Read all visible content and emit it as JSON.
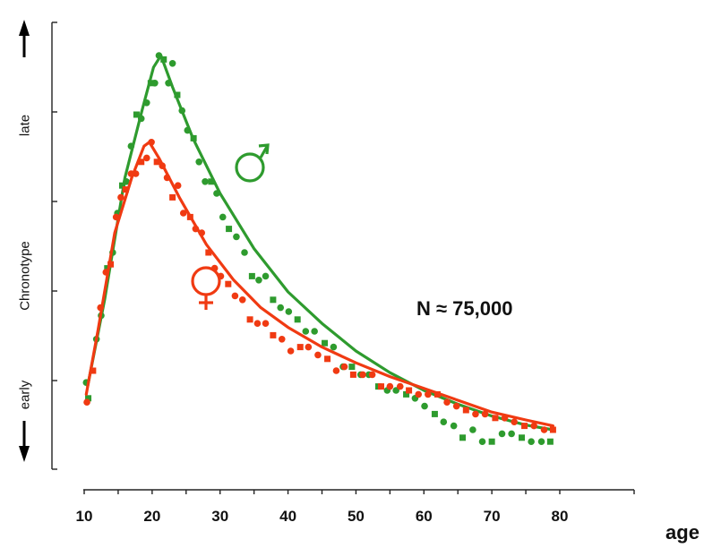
{
  "chart_data": {
    "type": "scatter",
    "xlabel": "age",
    "ylabel": "Chronotype",
    "ylabel_high": "late",
    "ylabel_low": "early",
    "xlim": [
      10,
      80
    ],
    "ylim": [
      0,
      10
    ],
    "x_ticks": [
      "10",
      "20",
      "30",
      "40",
      "50",
      "60",
      "70",
      "80"
    ],
    "annotation": "N ≈ 75,000",
    "grid": false,
    "series": [
      {
        "symbol": "♂",
        "color": "#2e9b2e",
        "fit": [
          [
            10.5,
            1.6
          ],
          [
            13,
            3.8
          ],
          [
            16,
            6.9
          ],
          [
            18.5,
            8.6
          ],
          [
            20.2,
            9.7
          ],
          [
            21.3,
            10.0
          ],
          [
            23,
            9.2
          ],
          [
            26,
            7.9
          ],
          [
            30,
            6.5
          ],
          [
            35,
            5.1
          ],
          [
            40,
            4.0
          ],
          [
            45,
            3.2
          ],
          [
            50,
            2.5
          ],
          [
            55,
            1.95
          ],
          [
            60,
            1.5
          ],
          [
            65,
            1.15
          ],
          [
            70,
            0.85
          ],
          [
            75,
            0.62
          ],
          [
            79,
            0.5
          ]
        ],
        "points": [
          [
            10.3,
            1.7
          ],
          [
            10.6,
            1.3
          ],
          [
            11.8,
            2.8
          ],
          [
            12.5,
            3.4
          ],
          [
            13.4,
            4.6
          ],
          [
            14.2,
            5.0
          ],
          [
            14.9,
            6.0
          ],
          [
            15.6,
            6.7
          ],
          [
            16.2,
            6.8
          ],
          [
            16.9,
            7.7
          ],
          [
            17.7,
            8.5
          ],
          [
            18.4,
            8.4
          ],
          [
            19.2,
            8.8
          ],
          [
            19.8,
            9.3
          ],
          [
            20.4,
            9.3
          ],
          [
            21.0,
            10.0
          ],
          [
            21.7,
            9.9
          ],
          [
            22.4,
            9.3
          ],
          [
            23.0,
            9.8
          ],
          [
            23.7,
            9.0
          ],
          [
            24.4,
            8.6
          ],
          [
            25.2,
            8.1
          ],
          [
            26.1,
            7.9
          ],
          [
            26.9,
            7.3
          ],
          [
            27.8,
            6.8
          ],
          [
            28.7,
            6.8
          ],
          [
            29.5,
            6.5
          ],
          [
            30.4,
            5.9
          ],
          [
            31.3,
            5.6
          ],
          [
            32.4,
            5.4
          ],
          [
            33.6,
            5.0
          ],
          [
            34.7,
            4.4
          ],
          [
            35.7,
            4.3
          ],
          [
            36.7,
            4.4
          ],
          [
            37.8,
            3.8
          ],
          [
            38.9,
            3.6
          ],
          [
            40.1,
            3.5
          ],
          [
            41.4,
            3.3
          ],
          [
            42.6,
            3.0
          ],
          [
            43.9,
            3.0
          ],
          [
            45.4,
            2.7
          ],
          [
            46.7,
            2.6
          ],
          [
            48.1,
            2.1
          ],
          [
            49.4,
            2.1
          ],
          [
            50.7,
            1.9
          ],
          [
            51.9,
            1.9
          ],
          [
            53.3,
            1.6
          ],
          [
            54.6,
            1.5
          ],
          [
            55.9,
            1.5
          ],
          [
            57.4,
            1.4
          ],
          [
            58.7,
            1.3
          ],
          [
            60.1,
            1.1
          ],
          [
            61.6,
            0.9
          ],
          [
            62.9,
            0.7
          ],
          [
            64.4,
            0.6
          ],
          [
            65.7,
            0.3
          ],
          [
            67.2,
            0.5
          ],
          [
            68.6,
            0.2
          ],
          [
            70.0,
            0.2
          ],
          [
            71.5,
            0.4
          ],
          [
            72.9,
            0.4
          ],
          [
            74.4,
            0.3
          ],
          [
            75.8,
            0.2
          ],
          [
            77.3,
            0.2
          ],
          [
            78.6,
            0.2
          ]
        ]
      },
      {
        "symbol": "♀",
        "color": "#f03a12",
        "fit": [
          [
            10.3,
            1.4
          ],
          [
            12,
            3.0
          ],
          [
            14.5,
            5.5
          ],
          [
            17,
            6.9
          ],
          [
            18.8,
            7.7
          ],
          [
            19.6,
            7.8
          ],
          [
            21,
            7.4
          ],
          [
            24,
            6.4
          ],
          [
            28,
            5.2
          ],
          [
            32,
            4.3
          ],
          [
            36,
            3.6
          ],
          [
            40,
            3.1
          ],
          [
            45,
            2.6
          ],
          [
            50,
            2.2
          ],
          [
            55,
            1.85
          ],
          [
            60,
            1.55
          ],
          [
            65,
            1.25
          ],
          [
            70,
            0.95
          ],
          [
            75,
            0.75
          ],
          [
            79,
            0.6
          ]
        ],
        "points": [
          [
            10.4,
            1.2
          ],
          [
            11.3,
            2.0
          ],
          [
            12.4,
            3.6
          ],
          [
            13.2,
            4.5
          ],
          [
            13.9,
            4.7
          ],
          [
            14.7,
            5.9
          ],
          [
            15.4,
            6.4
          ],
          [
            16.1,
            6.6
          ],
          [
            16.9,
            7.0
          ],
          [
            17.6,
            7.0
          ],
          [
            18.4,
            7.3
          ],
          [
            19.2,
            7.4
          ],
          [
            19.9,
            7.8
          ],
          [
            20.7,
            7.3
          ],
          [
            21.5,
            7.2
          ],
          [
            22.2,
            6.9
          ],
          [
            23.0,
            6.4
          ],
          [
            23.8,
            6.7
          ],
          [
            24.6,
            6.0
          ],
          [
            25.6,
            5.9
          ],
          [
            26.4,
            5.6
          ],
          [
            27.3,
            5.5
          ],
          [
            28.3,
            5.0
          ],
          [
            29.2,
            4.6
          ],
          [
            30.1,
            4.4
          ],
          [
            31.2,
            4.2
          ],
          [
            32.2,
            3.9
          ],
          [
            33.3,
            3.8
          ],
          [
            34.4,
            3.3
          ],
          [
            35.5,
            3.2
          ],
          [
            36.7,
            3.2
          ],
          [
            37.8,
            2.9
          ],
          [
            39.1,
            2.8
          ],
          [
            40.4,
            2.5
          ],
          [
            41.8,
            2.6
          ],
          [
            43.0,
            2.6
          ],
          [
            44.4,
            2.4
          ],
          [
            45.8,
            2.3
          ],
          [
            47.1,
            2.0
          ],
          [
            48.3,
            2.1
          ],
          [
            49.6,
            1.9
          ],
          [
            51.0,
            1.9
          ],
          [
            52.4,
            1.9
          ],
          [
            53.7,
            1.6
          ],
          [
            55.0,
            1.6
          ],
          [
            56.5,
            1.6
          ],
          [
            57.8,
            1.5
          ],
          [
            59.2,
            1.4
          ],
          [
            60.6,
            1.4
          ],
          [
            62.0,
            1.4
          ],
          [
            63.4,
            1.2
          ],
          [
            64.8,
            1.1
          ],
          [
            66.2,
            1.0
          ],
          [
            67.6,
            0.9
          ],
          [
            69.0,
            0.9
          ],
          [
            70.5,
            0.8
          ],
          [
            71.9,
            0.8
          ],
          [
            73.3,
            0.7
          ],
          [
            74.8,
            0.6
          ],
          [
            76.2,
            0.6
          ],
          [
            77.7,
            0.5
          ],
          [
            79.0,
            0.5
          ]
        ]
      }
    ]
  }
}
